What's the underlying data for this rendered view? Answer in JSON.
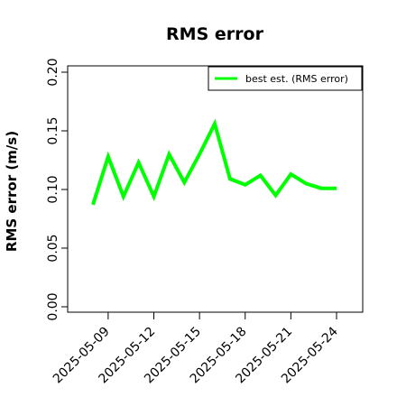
{
  "chart_data": {
    "type": "line",
    "title": "RMS error",
    "xlabel": "",
    "ylabel": "RMS error (m/s)",
    "x": [
      "2025-05-08",
      "2025-05-09",
      "2025-05-10",
      "2025-05-11",
      "2025-05-12",
      "2025-05-13",
      "2025-05-14",
      "2025-05-15",
      "2025-05-16",
      "2025-05-17",
      "2025-05-18",
      "2025-05-19",
      "2025-05-20",
      "2025-05-21",
      "2025-05-22",
      "2025-05-23",
      "2025-05-24"
    ],
    "series": [
      {
        "name": "best est. (RMS error)",
        "color": "#00ff00",
        "values": [
          0.087,
          0.128,
          0.094,
          0.123,
          0.094,
          0.13,
          0.106,
          0.13,
          0.156,
          0.109,
          0.104,
          0.112,
          0.095,
          0.113,
          0.105,
          0.101,
          0.101
        ]
      }
    ],
    "xticks": [
      "2025-05-09",
      "2025-05-12",
      "2025-05-15",
      "2025-05-18",
      "2025-05-21",
      "2025-05-24"
    ],
    "highlighted_tick": "2025-05-15",
    "highlight_color": "#228b22",
    "yticks": [
      "0.00",
      "0.05",
      "0.10",
      "0.15",
      "0.20"
    ],
    "ylim": [
      0,
      0.21
    ],
    "legend_position": "top-right",
    "grid": false
  }
}
